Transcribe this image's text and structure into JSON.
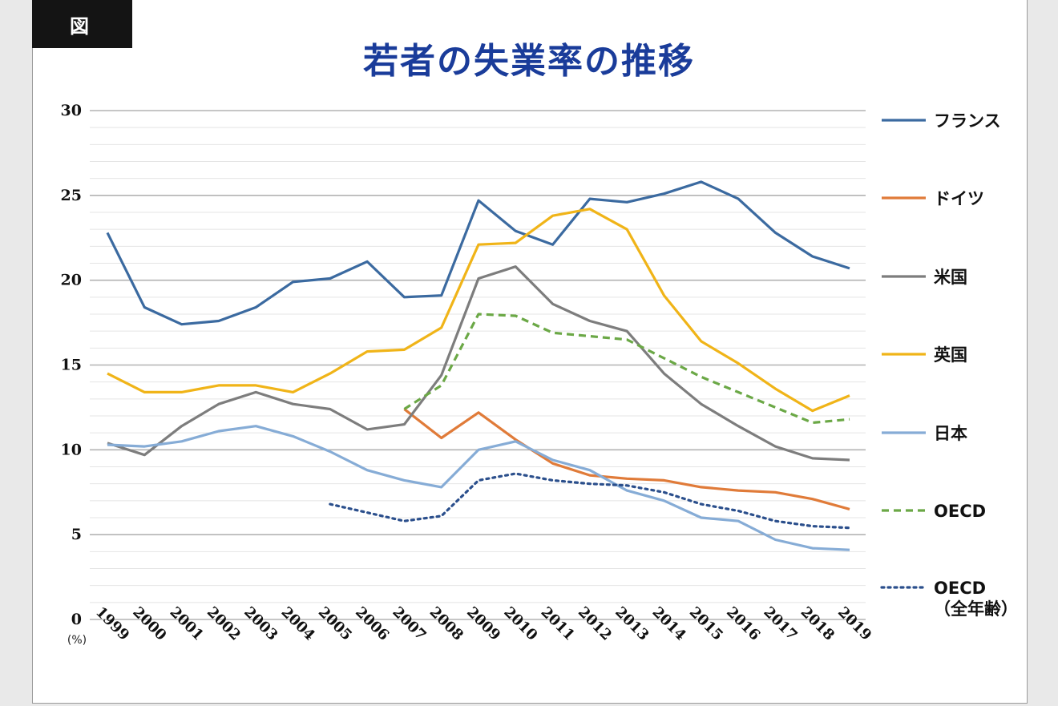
{
  "header": {
    "tag": "図"
  },
  "chart_data": {
    "type": "line",
    "title": "若者の失業率の推移",
    "ylabel": "(%)",
    "ylim": [
      0,
      30
    ],
    "yticks": [
      0,
      5,
      10,
      15,
      20,
      25,
      30
    ],
    "grid": true,
    "legend_position": "right",
    "x": [
      "1999",
      "2000",
      "2001",
      "2002",
      "2003",
      "2004",
      "2005",
      "2006",
      "2007",
      "2008",
      "2009",
      "2010",
      "2011",
      "2012",
      "2013",
      "2014",
      "2015",
      "2016",
      "2017",
      "2018",
      "2019"
    ],
    "series": [
      {
        "name": "フランス",
        "color": "#3b6aa0",
        "dash": "solid",
        "values": [
          22.8,
          18.4,
          17.4,
          17.6,
          18.4,
          19.9,
          20.1,
          21.1,
          19.0,
          19.1,
          24.7,
          22.9,
          22.1,
          24.8,
          24.6,
          25.1,
          25.8,
          24.8,
          22.8,
          21.4,
          20.7
        ]
      },
      {
        "name": "ドイツ",
        "color": "#e07b39",
        "dash": "solid",
        "values": [
          null,
          null,
          null,
          null,
          null,
          null,
          null,
          null,
          12.4,
          10.7,
          12.2,
          10.6,
          9.2,
          8.5,
          8.3,
          8.2,
          7.8,
          7.6,
          7.5,
          7.1,
          6.5
        ]
      },
      {
        "name": "米国",
        "color": "#7d7d7d",
        "dash": "solid",
        "values": [
          10.4,
          9.7,
          11.4,
          12.7,
          13.4,
          12.7,
          12.4,
          11.2,
          11.5,
          14.4,
          20.1,
          20.8,
          18.6,
          17.6,
          17.0,
          14.5,
          12.7,
          11.4,
          10.2,
          9.5,
          9.4
        ]
      },
      {
        "name": "英国",
        "color": "#f0b418",
        "dash": "solid",
        "values": [
          14.5,
          13.4,
          13.4,
          13.8,
          13.8,
          13.4,
          14.5,
          15.8,
          15.9,
          17.2,
          22.1,
          22.2,
          23.8,
          24.2,
          23.0,
          19.1,
          16.4,
          15.1,
          13.6,
          12.3,
          13.2
        ]
      },
      {
        "name": "日本",
        "color": "#86acd6",
        "dash": "solid",
        "values": [
          10.3,
          10.2,
          10.5,
          11.1,
          11.4,
          10.8,
          9.9,
          8.8,
          8.2,
          7.8,
          10.0,
          10.5,
          9.4,
          8.8,
          7.6,
          7.0,
          6.0,
          5.8,
          4.7,
          4.2,
          4.1
        ]
      },
      {
        "name": "OECD",
        "color": "#6ba846",
        "dash": "dashed",
        "values": [
          null,
          null,
          null,
          null,
          null,
          null,
          null,
          null,
          12.4,
          13.8,
          18.0,
          17.9,
          16.9,
          16.7,
          16.5,
          15.4,
          14.3,
          13.4,
          12.5,
          11.6,
          11.8
        ]
      },
      {
        "name": "OECD\n（全年齢）",
        "label_lines": [
          "OECD",
          "（全年齢）"
        ],
        "color": "#2b4f8c",
        "dash": "dotted",
        "values": [
          null,
          null,
          null,
          null,
          null,
          null,
          6.8,
          6.3,
          5.8,
          6.1,
          8.2,
          8.6,
          8.2,
          8.0,
          7.9,
          7.5,
          6.8,
          6.4,
          5.8,
          5.5,
          5.4
        ]
      }
    ]
  }
}
